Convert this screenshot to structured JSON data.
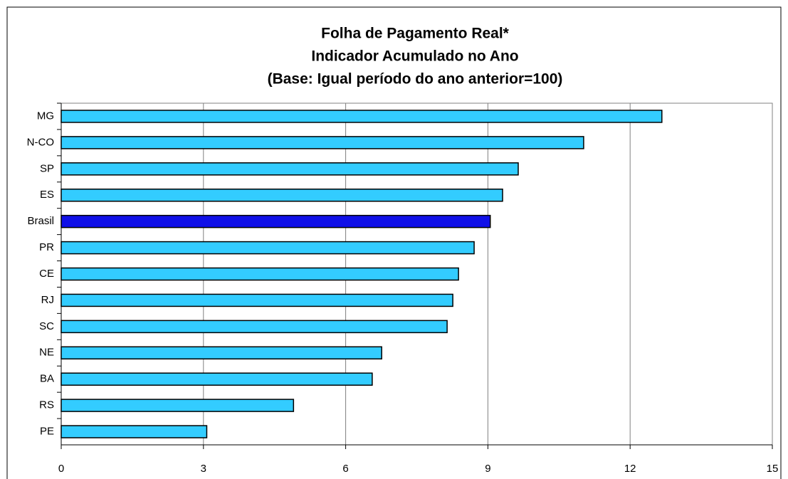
{
  "chart_data": {
    "type": "barh",
    "title": [
      "Folha de Pagamento Real*",
      "Indicador Acumulado no Ano",
      "(Base: Igual período do ano anterior=100)"
    ],
    "categories": [
      "MG",
      "N-CO",
      "SP",
      "ES",
      "Brasil",
      "PR",
      "CE",
      "RJ",
      "SC",
      "NE",
      "BA",
      "RS",
      "PE"
    ],
    "values": [
      12.67,
      11.02,
      9.64,
      9.31,
      9.05,
      8.71,
      8.38,
      8.26,
      8.14,
      6.76,
      6.56,
      4.9,
      3.07
    ],
    "colors": [
      "#33ccff",
      "#33ccff",
      "#33ccff",
      "#33ccff",
      "#1010e8",
      "#33ccff",
      "#33ccff",
      "#33ccff",
      "#33ccff",
      "#33ccff",
      "#33ccff",
      "#33ccff",
      "#33ccff"
    ],
    "xlim": [
      0,
      15
    ],
    "xticks": [
      0,
      3,
      6,
      9,
      12,
      15
    ],
    "grid": true
  }
}
